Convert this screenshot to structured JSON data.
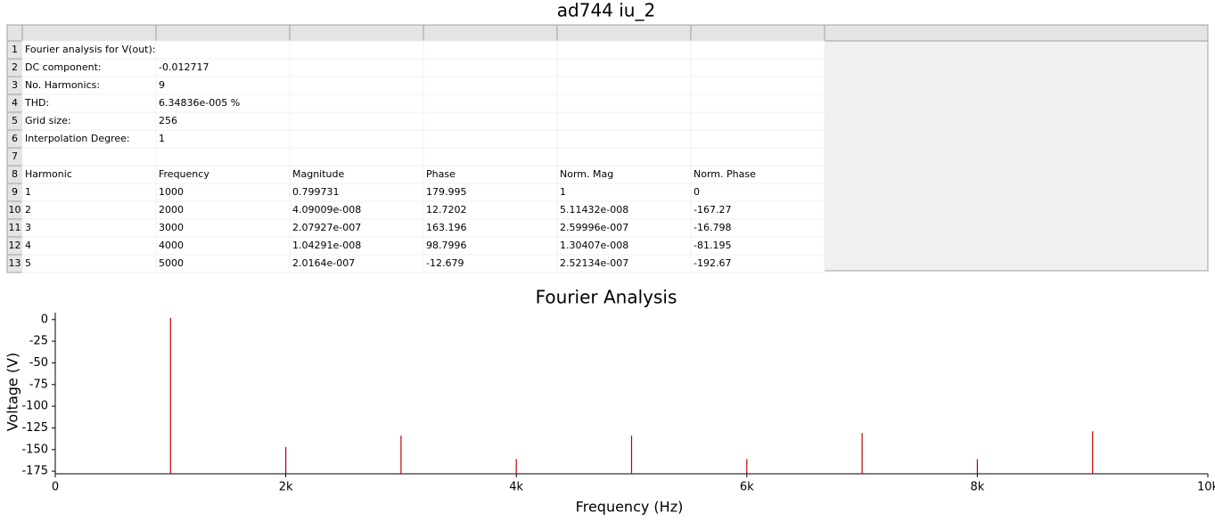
{
  "header": {
    "title": "ad744 iu_2"
  },
  "table": {
    "row_numbers": [
      1,
      2,
      3,
      4,
      5,
      6,
      7,
      8,
      9,
      10,
      11,
      12,
      13
    ],
    "rows": [
      [
        "Fourier analysis for V(out):",
        null,
        null,
        null,
        null,
        null
      ],
      [
        "DC component:",
        "-0.012717",
        null,
        null,
        null,
        null
      ],
      [
        "No. Harmonics:",
        "9",
        null,
        null,
        null,
        null
      ],
      [
        "THD:",
        "6.34836e-005 %",
        null,
        null,
        null,
        null
      ],
      [
        "Grid size:",
        "256",
        null,
        null,
        null,
        null
      ],
      [
        "Interpolation Degree:",
        "1",
        null,
        null,
        null,
        null
      ],
      [
        null,
        null,
        null,
        null,
        null,
        null
      ],
      [
        "Harmonic",
        "Frequency",
        "Magnitude",
        "Phase",
        "Norm. Mag",
        "Norm. Phase"
      ],
      [
        "1",
        "1000",
        "0.799731",
        "179.995",
        "1",
        "0"
      ],
      [
        "2",
        "2000",
        "4.09009e-008",
        "12.7202",
        "5.11432e-008",
        "-167.27"
      ],
      [
        "3",
        "3000",
        "2.07927e-007",
        "163.196",
        "2.59996e-007",
        "-16.798"
      ],
      [
        "4",
        "4000",
        "1.04291e-008",
        "98.7996",
        "1.30407e-008",
        "-81.195"
      ],
      [
        "5",
        "5000",
        "2.0164e-007",
        "-12.679",
        "2.52134e-007",
        "-192.67"
      ]
    ]
  },
  "chart_data": {
    "type": "stem",
    "title": "Fourier Analysis",
    "x_label": "Frequency (Hz)",
    "y_label": "Voltage (V)",
    "x": [
      1000,
      2000,
      3000,
      4000,
      5000,
      6000,
      7000,
      8000,
      9000
    ],
    "values": [
      2,
      -147,
      -134,
      -161,
      -134,
      -161,
      -131,
      -161,
      -129
    ],
    "color": "#c00000",
    "xlim": [
      0,
      10000
    ],
    "xticks": [
      0,
      {
        "value": 2000,
        "label": "2k"
      },
      {
        "value": 4000,
        "label": "4k"
      },
      {
        "value": 6000,
        "label": "6k"
      },
      {
        "value": 8000,
        "label": "8k"
      },
      {
        "value": 10000,
        "label": "10k"
      }
    ],
    "ylim": [
      -178,
      8
    ],
    "yticks": [
      0,
      -25,
      -50,
      -75,
      -100,
      -125,
      -150,
      -175
    ]
  }
}
